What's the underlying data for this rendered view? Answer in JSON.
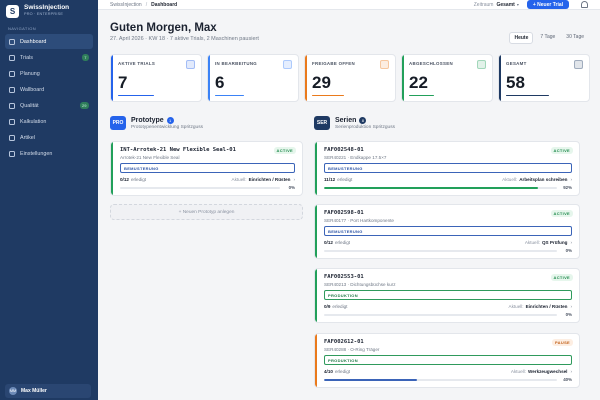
{
  "brand": {
    "logo": "S",
    "name": "SwissInjection",
    "sub": "PRO · ENTERPRISE"
  },
  "nav": {
    "heading": "NAVIGATION",
    "items": [
      {
        "label": "Dashboard",
        "icon": "grid-icon"
      },
      {
        "label": "Trials",
        "icon": "flask-icon",
        "badge": "7"
      },
      {
        "label": "Planung",
        "icon": "calendar-icon"
      },
      {
        "label": "Wallboard",
        "icon": "monitor-icon"
      },
      {
        "label": "Qualität",
        "icon": "shield-icon",
        "badge": "29"
      },
      {
        "label": "Kalkulation",
        "icon": "calculator-icon"
      },
      {
        "label": "Artikel",
        "icon": "package-icon"
      },
      {
        "label": "Einstellungen",
        "icon": "gear-icon"
      }
    ]
  },
  "user": {
    "initials": "MM",
    "name": "Max Müller"
  },
  "topbar": {
    "crumb_root": "SwissInjection",
    "crumb_current": "Dashboard",
    "zeitraum_label": "Zeitraum",
    "zeitraum_value": "Gesamt",
    "new_trial": "+ Neuer Trial"
  },
  "header": {
    "greeting": "Guten Morgen, Max",
    "subline": "27. April 2026 · KW 18 · 7 aktive Trials, 2 Maschinen pausiert",
    "ranges": [
      "Heute",
      "7 Tage",
      "30 Tage"
    ]
  },
  "kpis": [
    {
      "label": "AKTIVE TRIALS",
      "value": "7",
      "color": "#2563eb",
      "bar": 0.5
    },
    {
      "label": "IN BEARBEITUNG",
      "value": "6",
      "color": "#3b82f6",
      "bar": 0.4
    },
    {
      "label": "FREIGABE OFFEN",
      "value": "29",
      "color": "#ea7a1c",
      "bar": 0.45
    },
    {
      "label": "ABGESCHLOSSEN",
      "value": "22",
      "color": "#22a05a",
      "bar": 0.35
    },
    {
      "label": "GESAMT",
      "value": "58",
      "color": "#1f3a63",
      "bar": 0.6
    }
  ],
  "prototype": {
    "code": "PRO",
    "title": "Prototype",
    "count": "1",
    "sub": "Prototypenentwicklung Spritzguss",
    "add_label": "+ Neuen Prototyp anlegen",
    "cards": [
      {
        "id": "INT-Arrotek-21 New Flexible Seal-01",
        "desc": "Arrotek-21 New Flexible Seal",
        "status": "ACTIVE",
        "phase": "BEMUSTERUNG",
        "count": "0/12",
        "done": "erledigt",
        "aktuell": "Aktuell:",
        "step": "Einrichten / Rüsten",
        "pct": "0%",
        "progress": 0
      }
    ]
  },
  "serien": {
    "code": "SER",
    "title": "Serien",
    "count": "8",
    "sub": "Serienproduktion Spritzguss",
    "cards": [
      {
        "id": "FAF002548-01",
        "desc": "SER40221 · Endkappe 17.5×7",
        "status": "ACTIVE",
        "phase": "BEMUSTERUNG",
        "count": "11/12",
        "done": "erledigt",
        "aktuell": "Aktuell:",
        "step": "Arbeitsplan schreiben",
        "pct": "92%",
        "progress": 0.92
      },
      {
        "id": "FAF002598-01",
        "desc": "SER40177 · Port Hartkomponente",
        "status": "ACTIVE",
        "phase": "BEMUSTERUNG",
        "count": "0/12",
        "done": "erledigt",
        "aktuell": "Aktuell:",
        "step": "QS Prüfung",
        "pct": "0%",
        "progress": 0
      },
      {
        "id": "FAF002553-01",
        "desc": "SER40213 · Dichtungsbüchse kurz",
        "status": "ACTIVE",
        "phase": "PRODUKTION",
        "count": "0/9",
        "done": "erledigt",
        "aktuell": "Aktuell:",
        "step": "Einrichten / Rüsten",
        "pct": "0%",
        "progress": 0
      },
      {
        "id": "FAF002612-01",
        "desc": "SER40288 · O-Ring Träger",
        "status": "PAUSE",
        "phase": "PRODUKTION",
        "count": "4/10",
        "done": "erledigt",
        "aktuell": "Aktuell:",
        "step": "Werkzeugwechsel",
        "pct": "40%",
        "progress": 0.4
      }
    ]
  }
}
